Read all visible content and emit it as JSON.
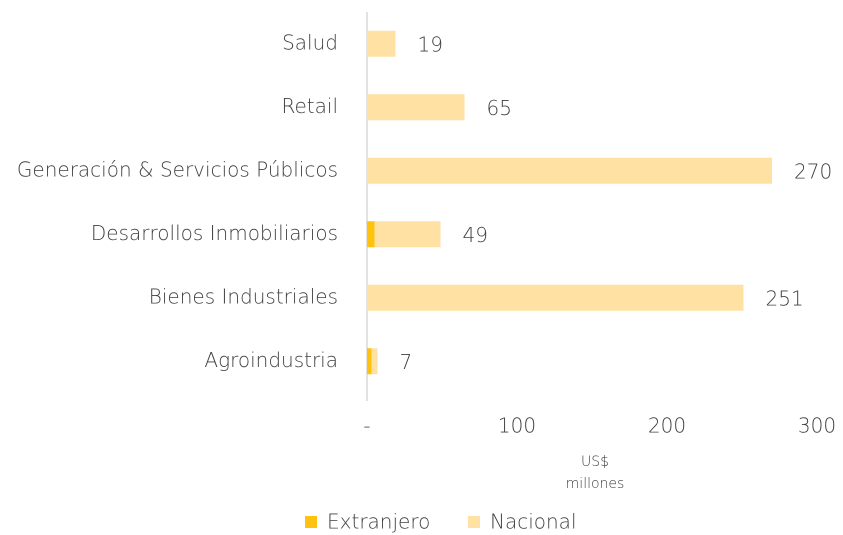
{
  "chart_data": {
    "type": "stacked_barh",
    "categories": [
      "Salud",
      "Retail",
      "Generación & Servicios Públicos",
      "Desarrollos Inmobiliarios",
      "Bienes Industriales",
      "Agroindustria"
    ],
    "series": [
      {
        "name": "Extranjero",
        "color": "#FFC20E",
        "values": [
          0,
          0,
          0,
          5,
          0,
          3
        ]
      },
      {
        "name": "Nacional",
        "color": "#FFE2A3",
        "values": [
          19,
          65,
          270,
          44,
          251,
          4
        ]
      }
    ],
    "totals": [
      19,
      65,
      270,
      49,
      251,
      7
    ],
    "xlim": [
      0,
      300
    ],
    "xticks": [
      {
        "value": 0,
        "label": "-"
      },
      100,
      200,
      300
    ],
    "xlabel": [
      "US$",
      "millones"
    ],
    "legend": "bottom"
  }
}
